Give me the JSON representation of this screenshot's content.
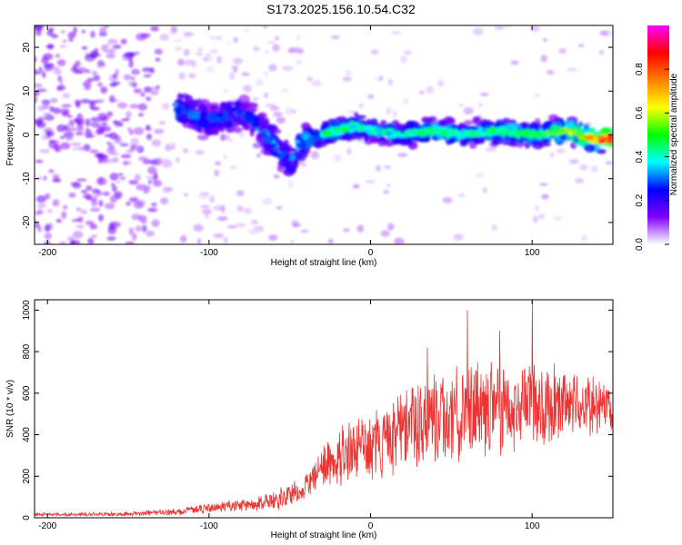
{
  "title": "S173.2025.156.10.54.C32",
  "chart_data": [
    {
      "type": "heatmap",
      "xlabel": "Height of straight line (km)",
      "ylabel": "Frequency (Hz)",
      "xlim": [
        -208,
        150
      ],
      "ylim": [
        -25,
        25
      ],
      "xticks": [
        -200,
        -100,
        0,
        100
      ],
      "xtick_labels": [
        "-200",
        "-100",
        "0",
        "100"
      ],
      "yticks": [
        -20,
        -10,
        0,
        10,
        20
      ],
      "ytick_labels": [
        "-20",
        "-10",
        "0",
        "10",
        "20"
      ],
      "grid": false,
      "colorbar": {
        "label": "Normalized spectral amplitude",
        "range": [
          0,
          1
        ],
        "ticks": [
          0.0,
          0.2,
          0.4,
          0.6,
          0.8
        ],
        "tick_labels": [
          "0.0",
          "0.2",
          "0.4",
          "0.6",
          "0.8"
        ],
        "colors": [
          "#ffffff",
          "#8000ff",
          "#0000ff",
          "#00ffff",
          "#00ff00",
          "#ffff00",
          "#ff8000",
          "#ff0000",
          "#ff00ff"
        ]
      },
      "ridge": {
        "x": [
          -120,
          -100,
          -80,
          -70,
          -60,
          -50,
          -40,
          -30,
          -20,
          -10,
          0,
          20,
          40,
          60,
          80,
          100,
          120,
          140,
          150
        ],
        "frequency": [
          6,
          3,
          5,
          2,
          -2,
          -6,
          -1,
          0,
          1,
          2,
          1,
          0,
          1,
          0,
          1,
          0,
          1,
          -1,
          -1
        ],
        "amplitude": [
          0.35,
          0.3,
          0.3,
          0.3,
          0.35,
          0.35,
          0.4,
          0.45,
          0.45,
          0.4,
          0.4,
          0.4,
          0.45,
          0.4,
          0.45,
          0.45,
          0.55,
          0.7,
          0.95
        ]
      }
    },
    {
      "type": "line",
      "xlabel": "Height of straight line (km)",
      "ylabel": "SNR (10 * v/v)",
      "xlim": [
        -208,
        150
      ],
      "ylim": [
        0,
        1050
      ],
      "xticks": [
        -200,
        -100,
        0,
        100
      ],
      "xtick_labels": [
        "-200",
        "-100",
        "0",
        "100"
      ],
      "yticks": [
        0,
        200,
        400,
        600,
        800,
        1000
      ],
      "ytick_labels": [
        "0",
        "200",
        "400",
        "600",
        "800",
        "1000"
      ],
      "grid": false,
      "series": [
        {
          "color": "#ee3333",
          "envelope_x": [
            -208,
            -150,
            -120,
            -100,
            -80,
            -60,
            -50,
            -40,
            -30,
            -25,
            -20,
            -10,
            0,
            10,
            20,
            40,
            60,
            80,
            100,
            120,
            150
          ],
          "envelope_mean": [
            15,
            18,
            30,
            45,
            60,
            80,
            110,
            150,
            230,
            270,
            300,
            330,
            340,
            370,
            420,
            480,
            520,
            540,
            540,
            550,
            530
          ],
          "envelope_spread": [
            12,
            15,
            25,
            35,
            45,
            60,
            80,
            100,
            150,
            180,
            200,
            220,
            230,
            260,
            300,
            320,
            330,
            320,
            300,
            260,
            180
          ],
          "peaks": [
            {
              "x": 60,
              "y": 1000
            },
            {
              "x": 100,
              "y": 1050
            },
            {
              "x": 35,
              "y": 820
            },
            {
              "x": 80,
              "y": 900
            }
          ]
        }
      ]
    }
  ]
}
